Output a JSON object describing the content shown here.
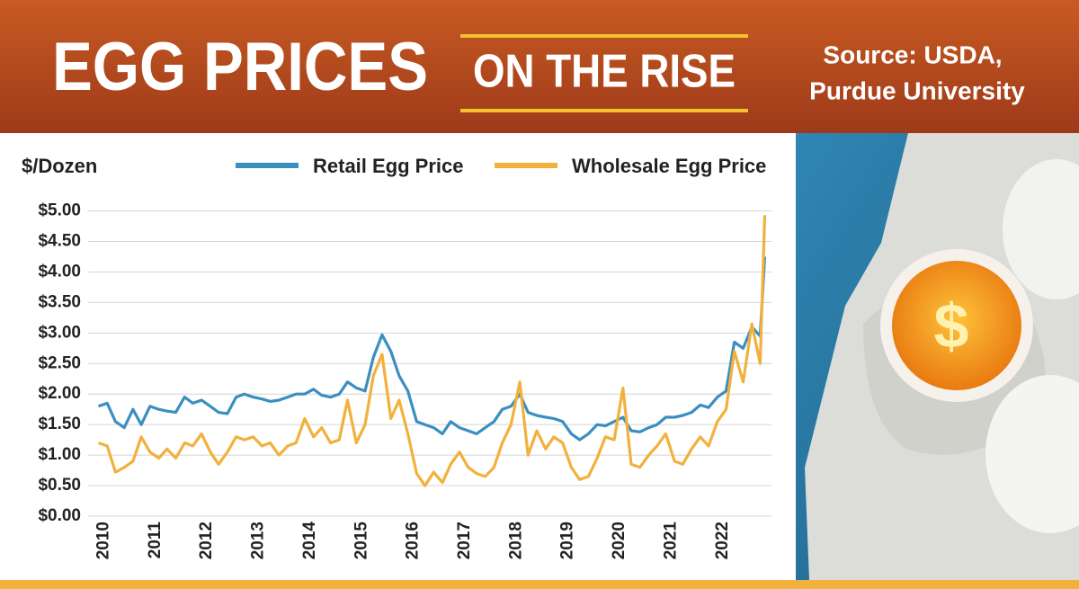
{
  "header": {
    "title": "EGG PRICES",
    "subtitle": "ON THE RISE",
    "source": [
      "Source: USDA,",
      "Purdue University"
    ],
    "image_text": "$"
  },
  "chart_data": {
    "type": "line",
    "y_label": "$/Dozen",
    "xlim": [
      2009.8,
      2023.05
    ],
    "xticks": [
      2010,
      2011,
      2012,
      2013,
      2014,
      2015,
      2016,
      2017,
      2018,
      2019,
      2020,
      2021,
      2022
    ],
    "ylim": [
      0,
      5.2
    ],
    "yticks": [
      {
        "value": 0,
        "label": "$0.00"
      },
      {
        "value": 0.5,
        "label": "$0.50"
      },
      {
        "value": 1,
        "label": "$1.00"
      },
      {
        "value": 1.5,
        "label": "$1.50"
      },
      {
        "value": 2,
        "label": "$2.00"
      },
      {
        "value": 2.5,
        "label": "$2.50"
      },
      {
        "value": 3,
        "label": "$3.00"
      },
      {
        "value": 3.5,
        "label": "$3.50"
      },
      {
        "value": 4,
        "label": "$4.00"
      },
      {
        "value": 4.5,
        "label": "$4.50"
      },
      {
        "value": 5,
        "label": "$5.00"
      }
    ],
    "grid": true,
    "legend": "top",
    "x": [
      2010.0,
      2010.17,
      2010.33,
      2010.5,
      2010.67,
      2010.83,
      2011.0,
      2011.17,
      2011.33,
      2011.5,
      2011.67,
      2011.83,
      2012.0,
      2012.17,
      2012.33,
      2012.5,
      2012.67,
      2012.83,
      2013.0,
      2013.17,
      2013.33,
      2013.5,
      2013.67,
      2013.83,
      2014.0,
      2014.17,
      2014.33,
      2014.5,
      2014.67,
      2014.83,
      2015.0,
      2015.17,
      2015.33,
      2015.5,
      2015.67,
      2015.83,
      2016.0,
      2016.17,
      2016.33,
      2016.5,
      2016.67,
      2016.83,
      2017.0,
      2017.17,
      2017.33,
      2017.5,
      2017.67,
      2017.83,
      2018.0,
      2018.17,
      2018.33,
      2018.5,
      2018.67,
      2018.83,
      2019.0,
      2019.17,
      2019.33,
      2019.5,
      2019.67,
      2019.83,
      2020.0,
      2020.17,
      2020.33,
      2020.5,
      2020.67,
      2020.83,
      2021.0,
      2021.17,
      2021.33,
      2021.5,
      2021.67,
      2021.83,
      2022.0,
      2022.17,
      2022.33,
      2022.5,
      2022.67,
      2022.83,
      2022.92
    ],
    "series": [
      {
        "name": "Retail Egg Price",
        "color": "#3a8fc0",
        "values": [
          1.8,
          1.85,
          1.55,
          1.45,
          1.75,
          1.5,
          1.8,
          1.75,
          1.72,
          1.7,
          1.95,
          1.85,
          1.9,
          1.8,
          1.7,
          1.68,
          1.95,
          2.0,
          1.95,
          1.92,
          1.88,
          1.9,
          1.95,
          2.0,
          2.0,
          2.08,
          1.98,
          1.95,
          2.0,
          2.2,
          2.1,
          2.05,
          2.6,
          2.97,
          2.7,
          2.3,
          2.05,
          1.55,
          1.5,
          1.45,
          1.35,
          1.55,
          1.45,
          1.4,
          1.35,
          1.45,
          1.55,
          1.75,
          1.8,
          2.0,
          1.7,
          1.65,
          1.62,
          1.6,
          1.55,
          1.35,
          1.25,
          1.35,
          1.5,
          1.48,
          1.55,
          1.62,
          1.4,
          1.38,
          1.45,
          1.5,
          1.62,
          1.62,
          1.65,
          1.7,
          1.82,
          1.78,
          1.95,
          2.05,
          2.85,
          2.75,
          3.1,
          2.95,
          4.25
        ]
      },
      {
        "name": "Wholesale Egg Price",
        "color": "#f2b13c",
        "values": [
          1.2,
          1.15,
          0.72,
          0.8,
          0.9,
          1.3,
          1.05,
          0.95,
          1.1,
          0.95,
          1.2,
          1.15,
          1.35,
          1.05,
          0.85,
          1.05,
          1.3,
          1.25,
          1.3,
          1.15,
          1.2,
          1.0,
          1.15,
          1.2,
          1.6,
          1.3,
          1.45,
          1.2,
          1.25,
          1.9,
          1.2,
          1.5,
          2.3,
          2.65,
          1.6,
          1.9,
          1.35,
          0.7,
          0.5,
          0.72,
          0.55,
          0.85,
          1.05,
          0.8,
          0.7,
          0.65,
          0.8,
          1.2,
          1.5,
          2.2,
          1.0,
          1.4,
          1.1,
          1.3,
          1.2,
          0.8,
          0.6,
          0.65,
          0.95,
          1.3,
          1.25,
          2.1,
          0.85,
          0.8,
          1.0,
          1.15,
          1.35,
          0.9,
          0.85,
          1.1,
          1.3,
          1.15,
          1.55,
          1.75,
          2.7,
          2.2,
          3.15,
          2.5,
          4.93
        ]
      }
    ]
  }
}
